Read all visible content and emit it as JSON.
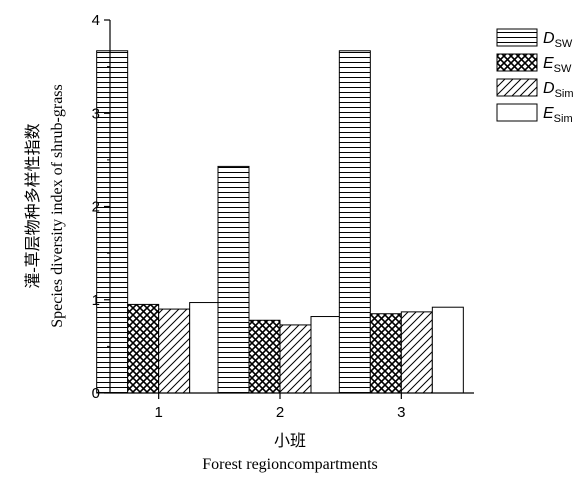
{
  "chart_data": {
    "type": "bar",
    "categories": [
      "1",
      "2",
      "3"
    ],
    "series": [
      {
        "name": "D",
        "sub": "SW",
        "pattern": "hlines",
        "values": [
          3.67,
          2.43,
          3.67
        ]
      },
      {
        "name": "E",
        "sub": "SW",
        "pattern": "crosshatch",
        "values": [
          0.95,
          0.78,
          0.85
        ]
      },
      {
        "name": "D",
        "sub": "Sim",
        "pattern": "diagonal",
        "values": [
          0.9,
          0.73,
          0.87
        ]
      },
      {
        "name": "E",
        "sub": "Sim",
        "pattern": "empty",
        "values": [
          0.97,
          0.82,
          0.92
        ]
      }
    ],
    "ylim": [
      0,
      4
    ],
    "yticks": [
      "0",
      "1",
      "2",
      "3",
      "4"
    ],
    "xlabel_cn": "小班",
    "xlabel_en": "Forest regioncompartments",
    "ylabel_cn": "灌-草层物种多样性指数",
    "ylabel_en": "Species diversity index of shrub-grass",
    "legend_position": "top-right",
    "grid": false
  }
}
